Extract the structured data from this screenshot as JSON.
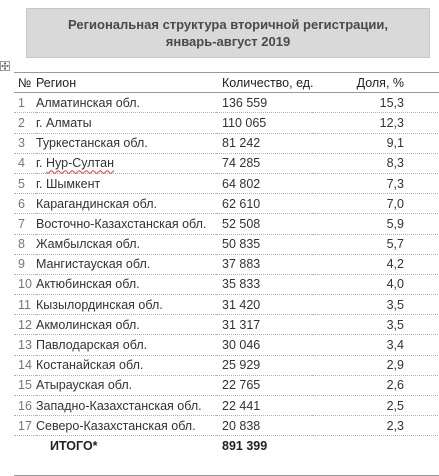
{
  "title": {
    "line1": "Региональная структура вторичной регистрации,",
    "line2": "январь-август 2019"
  },
  "table": {
    "headers": {
      "num": "№",
      "region": "Регион",
      "count": "Количество, ед.",
      "share": "Доля, %"
    },
    "rows": [
      {
        "num": "1",
        "region": "Алматинская обл.",
        "count": "136 559",
        "share": "15,3"
      },
      {
        "num": "2",
        "region": "г. Алматы",
        "count": "110 065",
        "share": "12,3"
      },
      {
        "num": "3",
        "region": "Туркестанская обл.",
        "count": "81 242",
        "share": "9,1"
      },
      {
        "num": "4",
        "region_prefix": "г. ",
        "region_word": "Нур-Султан",
        "count": "74 285",
        "share": "8,3"
      },
      {
        "num": "5",
        "region": "г. Шымкент",
        "count": "64 802",
        "share": "7,3"
      },
      {
        "num": "6",
        "region": "Карагандинская обл.",
        "count": "62 610",
        "share": "7,0"
      },
      {
        "num": "7",
        "region": "Восточно-Казахстанская обл.",
        "count": "52 508",
        "share": "5,9"
      },
      {
        "num": "8",
        "region": "Жамбылская обл.",
        "count": "50 835",
        "share": "5,7"
      },
      {
        "num": "9",
        "region": "Мангистауская обл.",
        "count": "37 883",
        "share": "4,2"
      },
      {
        "num": "10",
        "region": "Актюбинская обл.",
        "count": "35 833",
        "share": "4,0"
      },
      {
        "num": "11",
        "region": "Кызылординская обл.",
        "count": "31 420",
        "share": "3,5"
      },
      {
        "num": "12",
        "region": "Акмолинская обл.",
        "count": "31 317",
        "share": "3,5"
      },
      {
        "num": "13",
        "region": "Павлодарская обл.",
        "count": "30 046",
        "share": "3,4"
      },
      {
        "num": "14",
        "region": "Костанайская обл.",
        "count": "25 929",
        "share": "2,9"
      },
      {
        "num": "15",
        "region": "Атырауская обл.",
        "count": "22 765",
        "share": "2,6"
      },
      {
        "num": "16",
        "region": "Западно-Казахстанская обл.",
        "count": "22 441",
        "share": "2,5"
      },
      {
        "num": "17",
        "region": "Северо-Казахстанская обл.",
        "count": "20 838",
        "share": "2,3"
      }
    ],
    "total": {
      "label": "ИТОГО*",
      "count": "891 399"
    }
  },
  "icons": {
    "table_handle": "move-arrows-icon"
  }
}
